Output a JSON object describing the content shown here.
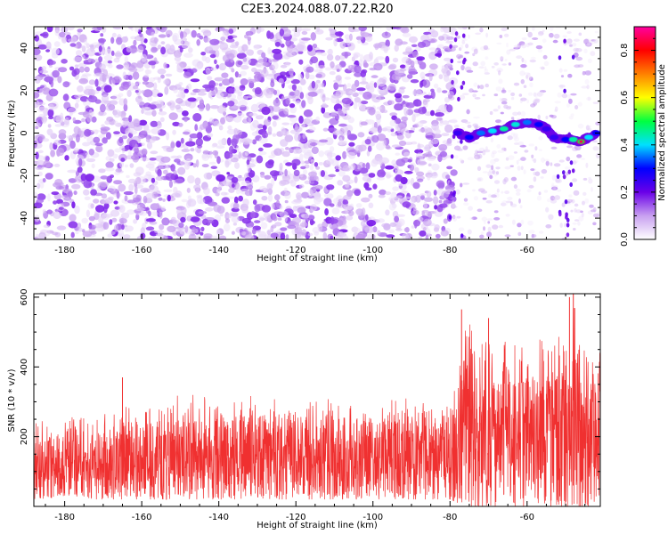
{
  "title": "C2E3.2024.088.07.22.R20",
  "chart_data": [
    {
      "type": "heatmap",
      "xlabel": "Height of straight line (km)",
      "ylabel": "Frequency (Hz)",
      "xlim": [
        -188,
        -41
      ],
      "ylim": [
        -50,
        50
      ],
      "x_ticks": [
        -180,
        -160,
        -140,
        -120,
        -100,
        -80,
        -60
      ],
      "y_ticks": [
        -40,
        -20,
        0,
        20,
        40
      ],
      "colorbar": {
        "label": "Normalized spectral amplitude",
        "range": [
          0,
          0.9
        ],
        "ticks": [
          0.0,
          0.2,
          0.4,
          0.6,
          0.8
        ],
        "tick_labels": [
          "0.0",
          "0.2",
          "0.4",
          "0.6",
          "0.8"
        ],
        "colormap": [
          "#ffffff",
          "#c8a0f0",
          "#6a00e8",
          "#0000ff",
          "#00e0ff",
          "#00ff40",
          "#ffff00",
          "#ff8000",
          "#ff0000",
          "#ff00a0"
        ]
      },
      "noise_region": {
        "x": [
          -188,
          -79
        ],
        "y": [
          -50,
          50
        ],
        "amplitude": [
          0.02,
          0.12
        ]
      },
      "sparse_region": {
        "x": [
          -79,
          -41
        ],
        "y": [
          -50,
          50
        ],
        "amplitude": [
          0.01,
          0.06
        ]
      },
      "signal_track": [
        {
          "x": -78,
          "y": 0,
          "amp": 0.25
        },
        {
          "x": -75,
          "y": -2,
          "amp": 0.3
        },
        {
          "x": -72,
          "y": 0,
          "amp": 0.35
        },
        {
          "x": -69,
          "y": 1,
          "amp": 0.4
        },
        {
          "x": -66,
          "y": 2,
          "amp": 0.45
        },
        {
          "x": -63,
          "y": 4,
          "amp": 0.42
        },
        {
          "x": -60,
          "y": 5,
          "amp": 0.35
        },
        {
          "x": -57,
          "y": 4,
          "amp": 0.3
        },
        {
          "x": -55,
          "y": 2,
          "amp": 0.25
        },
        {
          "x": -53,
          "y": -2,
          "amp": 0.25
        },
        {
          "x": -50,
          "y": -3,
          "amp": 0.3
        },
        {
          "x": -48,
          "y": -3,
          "amp": 0.45
        },
        {
          "x": -46,
          "y": -4,
          "amp": 0.85
        },
        {
          "x": -44,
          "y": -2,
          "amp": 0.4
        },
        {
          "x": -42,
          "y": 0,
          "amp": 0.3
        }
      ]
    },
    {
      "type": "line",
      "xlabel": "Height of straight line (km)",
      "ylabel": "SNR (10 * v/v)",
      "xlim": [
        -188,
        -41
      ],
      "ylim": [
        0,
        610
      ],
      "x_ticks": [
        -180,
        -160,
        -140,
        -120,
        -100,
        -80,
        -60
      ],
      "y_ticks": [
        200,
        400,
        600
      ],
      "color": "#f03030",
      "envelope": [
        {
          "x": -188,
          "low": 20,
          "high": 240
        },
        {
          "x": -170,
          "low": 20,
          "high": 280
        },
        {
          "x": -150,
          "low": 20,
          "high": 320
        },
        {
          "x": -130,
          "low": 20,
          "high": 320
        },
        {
          "x": -100,
          "low": 20,
          "high": 300
        },
        {
          "x": -80,
          "low": 20,
          "high": 330
        },
        {
          "x": -76,
          "low": 0,
          "high": 570
        },
        {
          "x": -70,
          "low": 0,
          "high": 520
        },
        {
          "x": -60,
          "low": 0,
          "high": 480
        },
        {
          "x": -52,
          "low": 0,
          "high": 480
        },
        {
          "x": -48,
          "low": 0,
          "high": 610
        },
        {
          "x": -44,
          "low": 0,
          "high": 480
        },
        {
          "x": -41,
          "low": 20,
          "high": 480
        }
      ],
      "peaks": [
        {
          "x": -165,
          "y": 370
        },
        {
          "x": -77,
          "y": 565
        },
        {
          "x": -70,
          "y": 540
        },
        {
          "x": -49,
          "y": 600
        },
        {
          "x": -48,
          "y": 610
        }
      ]
    }
  ]
}
